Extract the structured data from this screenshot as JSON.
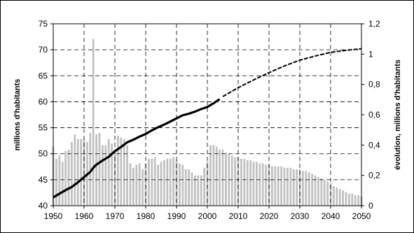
{
  "chart_data": {
    "type": "bar+line",
    "title": "",
    "xlabel": "",
    "ylabel_left": "millions d'habitants",
    "ylabel_right": "évolution, millions d'habitants",
    "xlim": [
      1950,
      2050
    ],
    "ylim_left": [
      40,
      75
    ],
    "ylim_right": [
      0,
      1.2
    ],
    "x_ticks": [
      "1950",
      "1960",
      "1970",
      "1980",
      "1990",
      "2000",
      "2010",
      "2020",
      "2030",
      "2040",
      "2050"
    ],
    "y_left_ticks": [
      "40",
      "45",
      "50",
      "55",
      "60",
      "65",
      "70",
      "75"
    ],
    "y_right_ticks": [
      "0",
      "0,2",
      "0,4",
      "0,6",
      "0,8",
      "1",
      "1,2"
    ],
    "grid": true,
    "legend": "none",
    "colors": {
      "bars": "#c0c0c0",
      "line": "#000000",
      "grid": "#000000",
      "frame": "#000000"
    },
    "series": [
      {
        "kind": "line",
        "axis": "left",
        "style": "solid",
        "x": [
          1950,
          1952,
          1954,
          1956,
          1958,
          1960,
          1962,
          1963,
          1964,
          1966,
          1968,
          1970,
          1972,
          1974,
          1976,
          1978,
          1980,
          1982,
          1984,
          1986,
          1988,
          1990,
          1992,
          1994,
          1996,
          1998,
          2000,
          2002,
          2004
        ],
        "values": [
          41.6,
          42.3,
          43.0,
          43.6,
          44.5,
          45.5,
          46.5,
          47.3,
          47.9,
          48.7,
          49.4,
          50.5,
          51.3,
          52.2,
          52.7,
          53.3,
          53.8,
          54.5,
          55.1,
          55.6,
          56.2,
          56.8,
          57.4,
          57.7,
          58.1,
          58.6,
          59.0,
          59.7,
          60.5
        ]
      },
      {
        "kind": "line",
        "axis": "left",
        "style": "dashed",
        "x": [
          2005,
          2010,
          2015,
          2020,
          2025,
          2030,
          2035,
          2040,
          2045,
          2050
        ],
        "values": [
          61.0,
          62.7,
          64.2,
          65.6,
          66.9,
          68.0,
          68.8,
          69.5,
          69.9,
          70.2
        ]
      },
      {
        "kind": "bar",
        "axis": "right",
        "x": [
          1950,
          1951,
          1952,
          1953,
          1954,
          1955,
          1956,
          1957,
          1958,
          1959,
          1960,
          1961,
          1962,
          1963,
          1964,
          1965,
          1966,
          1967,
          1968,
          1969,
          1970,
          1971,
          1972,
          1973,
          1974,
          1975,
          1976,
          1977,
          1978,
          1979,
          1980,
          1981,
          1982,
          1983,
          1984,
          1985,
          1986,
          1987,
          1988,
          1989,
          1990,
          1991,
          1992,
          1993,
          1994,
          1995,
          1996,
          1997,
          1998,
          1999,
          2000,
          2001,
          2002,
          2003,
          2004,
          2005,
          2006,
          2007,
          2008,
          2009,
          2010,
          2011,
          2012,
          2013,
          2014,
          2015,
          2016,
          2017,
          2018,
          2019,
          2020,
          2021,
          2022,
          2023,
          2024,
          2025,
          2026,
          2027,
          2028,
          2029,
          2030,
          2031,
          2032,
          2033,
          2034,
          2035,
          2036,
          2037,
          2038,
          2039,
          2040,
          2041,
          2042,
          2043,
          2044,
          2045,
          2046,
          2047,
          2048,
          2049,
          2050
        ],
        "values": [
          0.39,
          0.31,
          0.33,
          0.29,
          0.36,
          0.37,
          0.42,
          0.47,
          0.44,
          0.44,
          0.44,
          0.42,
          0.48,
          1.1,
          0.47,
          0.48,
          0.4,
          0.4,
          0.44,
          0.41,
          0.37,
          0.46,
          0.45,
          0.44,
          0.4,
          0.28,
          0.25,
          0.27,
          0.28,
          0.24,
          0.28,
          0.31,
          0.31,
          0.32,
          0.27,
          0.29,
          0.3,
          0.31,
          0.31,
          0.32,
          0.3,
          0.28,
          0.27,
          0.24,
          0.24,
          0.22,
          0.2,
          0.2,
          0.2,
          0.25,
          0.29,
          0.4,
          0.4,
          0.39,
          0.37,
          0.37,
          0.35,
          0.34,
          0.33,
          0.32,
          0.32,
          0.31,
          0.31,
          0.3,
          0.3,
          0.29,
          0.29,
          0.28,
          0.28,
          0.27,
          0.27,
          0.26,
          0.26,
          0.26,
          0.26,
          0.25,
          0.25,
          0.25,
          0.24,
          0.24,
          0.24,
          0.23,
          0.23,
          0.22,
          0.21,
          0.2,
          0.19,
          0.18,
          0.17,
          0.16,
          0.15,
          0.13,
          0.12,
          0.11,
          0.1,
          0.09,
          0.08,
          0.08,
          0.07,
          0.07,
          0.06
        ]
      }
    ]
  }
}
